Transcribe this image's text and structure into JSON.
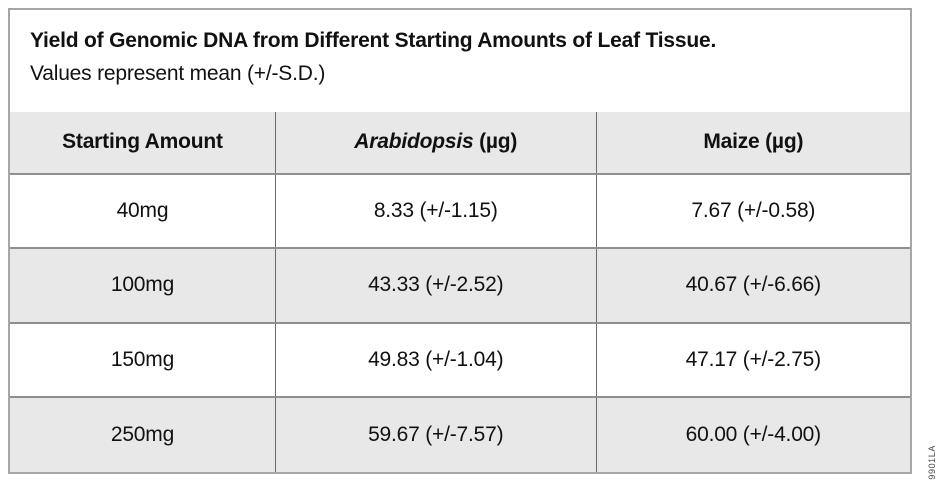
{
  "figure": {
    "title": "Yield of Genomic DNA from Different Starting Amounts of Leaf Tissue.",
    "subtitle": "Values represent mean (+/-S.D.)",
    "figure_code": "9901LA"
  },
  "colors": {
    "header_bg": "#e8e8e8",
    "shaded_row_bg": "#e8e8e8",
    "border_outer": "#a6a6a6",
    "border_inner": "#8f8f8f",
    "text": "#111111"
  },
  "table": {
    "header": {
      "col1": "Starting Amount",
      "col2_italic": "Arabidopsis",
      "col2_rest": " (µg)",
      "col3": "Maize (µg)"
    },
    "rows": [
      {
        "amount": "40mg",
        "arabidopsis": "8.33 (+/-1.15)",
        "maize": "7.67 (+/-0.58)"
      },
      {
        "amount": "100mg",
        "arabidopsis": "43.33 (+/-2.52)",
        "maize": "40.67 (+/-6.66)"
      },
      {
        "amount": "150mg",
        "arabidopsis": "49.83 (+/-1.04)",
        "maize": "47.17 (+/-2.75)"
      },
      {
        "amount": "250mg",
        "arabidopsis": "59.67 (+/-7.57)",
        "maize": "60.00 (+/-4.00)"
      }
    ]
  },
  "chart_data": {
    "type": "table",
    "title": "Yield of Genomic DNA from Different Starting Amounts of Leaf Tissue.",
    "subtitle": "Values represent mean (+/-S.D.)",
    "columns": [
      "Starting Amount",
      "Arabidopsis (µg)",
      "Maize (µg)"
    ],
    "categories": [
      "40mg",
      "100mg",
      "150mg",
      "250mg"
    ],
    "series": [
      {
        "name": "Arabidopsis (µg)",
        "mean": [
          8.33,
          43.33,
          49.83,
          59.67
        ],
        "sd": [
          1.15,
          2.52,
          1.04,
          7.57
        ]
      },
      {
        "name": "Maize (µg)",
        "mean": [
          7.67,
          40.67,
          47.17,
          60.0
        ],
        "sd": [
          0.58,
          6.66,
          2.75,
          4.0
        ]
      }
    ],
    "rows": [
      [
        "40mg",
        "8.33 (+/-1.15)",
        "7.67 (+/-0.58)"
      ],
      [
        "100mg",
        "43.33 (+/-2.52)",
        "40.67 (+/-6.66)"
      ],
      [
        "150mg",
        "49.83 (+/-1.04)",
        "47.17 (+/-2.75)"
      ],
      [
        "250mg",
        "59.67 (+/-7.57)",
        "60.00 (+/-4.00)"
      ]
    ]
  }
}
